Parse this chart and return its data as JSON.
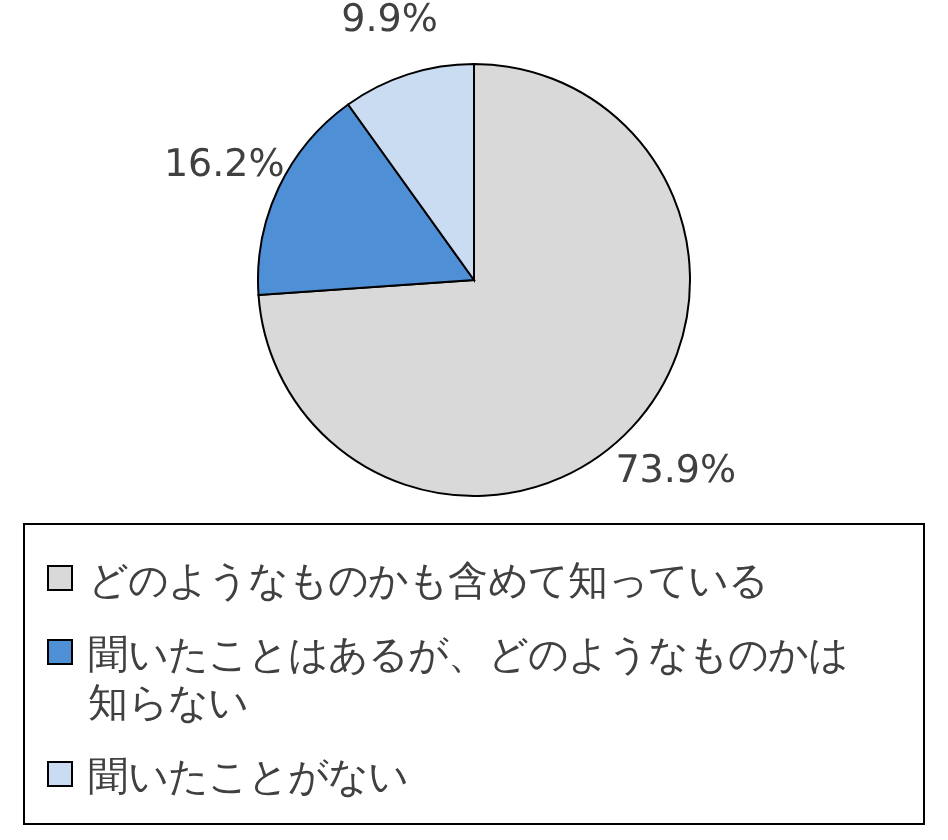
{
  "chart_data": {
    "type": "pie",
    "categories": [
      "どのようなものかも含めて知っている",
      "聞いたことはあるが、どのようなものかは知らない",
      "聞いたことがない"
    ],
    "values": [
      73.9,
      16.2,
      9.9
    ],
    "colors": [
      "#d9d9d9",
      "#4f8fd6",
      "#c9dcf2"
    ],
    "value_labels": [
      "73.9%",
      "16.2%",
      "9.9%"
    ],
    "legend": "bottom"
  }
}
